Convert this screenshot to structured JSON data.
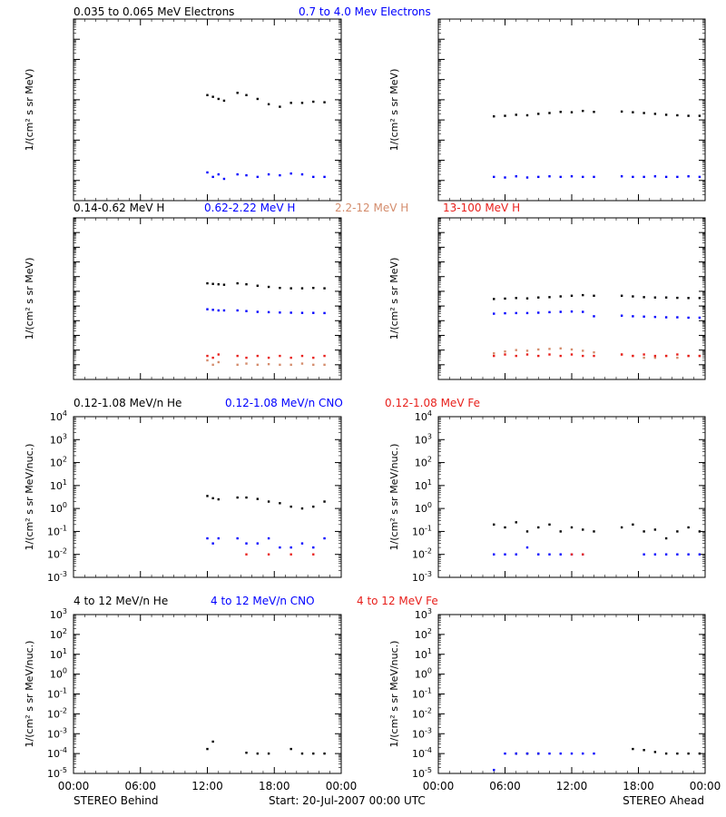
{
  "colors": {
    "black": "#000000",
    "blue": "#0000ff",
    "salmon": "#d48c6c",
    "red": "#e8201c"
  },
  "rows": [
    {
      "legend": [
        {
          "text": "0.035 to 0.065 MeV Electrons",
          "color": "#000000"
        },
        {
          "text": "0.7 to 4.0 Mev Electrons",
          "color": "#0000ff"
        }
      ],
      "ylabel": "1/(cm² s sr MeV)"
    },
    {
      "legend": [
        {
          "text": "0.14-0.62 MeV H",
          "color": "#000000"
        },
        {
          "text": "0.62-2.22 MeV H",
          "color": "#0000ff"
        },
        {
          "text": "2.2-12 MeV H",
          "color": "#d48c6c"
        },
        {
          "text": "13-100 MeV H",
          "color": "#e8201c"
        }
      ],
      "ylabel": "1/(cm² s sr MeV)"
    },
    {
      "legend": [
        {
          "text": "0.12-1.08 MeV/n He",
          "color": "#000000"
        },
        {
          "text": "0.12-1.08 MeV/n CNO",
          "color": "#0000ff"
        },
        {
          "text": "0.12-1.08 MeV Fe",
          "color": "#e8201c"
        }
      ],
      "ylabel": "1/(cm² s sr MeV/nuc.)"
    },
    {
      "legend": [
        {
          "text": "4 to 12 MeV/n He",
          "color": "#000000"
        },
        {
          "text": "4 to 12 MeV/n CNO",
          "color": "#0000ff"
        },
        {
          "text": "4 to 12 MeV Fe",
          "color": "#e8201c"
        }
      ],
      "ylabel": "1/(cm² s sr MeV/nuc.)"
    }
  ],
  "x_ticks": [
    "00:00",
    "06:00",
    "12:00",
    "18:00",
    "00:00"
  ],
  "footer": {
    "left": "STEREO Behind",
    "center": "Start: 20-Jul-2007 00:00 UTC",
    "right": "STEREO Ahead"
  },
  "chart_data": [
    {
      "type": "scatter",
      "panel": "row1-behind",
      "yscale": "log",
      "xlim": [
        0,
        24
      ],
      "ylim": [
        0.001,
        1000000
      ],
      "series": [
        {
          "color": "#000000",
          "x": [
            12,
            12.5,
            13,
            13.5,
            14.7,
            15.5,
            16.5,
            17.5,
            18.5,
            19.5,
            20.5,
            21.5,
            22.5
          ],
          "y": [
            170,
            140,
            110,
            90,
            220,
            170,
            110,
            60,
            45,
            70,
            70,
            80,
            75
          ]
        },
        {
          "color": "#0000ff",
          "x": [
            12,
            12.5,
            13,
            13.5,
            14.7,
            15.5,
            16.5,
            17.5,
            18.5,
            19.5,
            20.5,
            21.5,
            22.5
          ],
          "y": [
            0.025,
            0.015,
            0.02,
            0.012,
            0.02,
            0.018,
            0.015,
            0.02,
            0.018,
            0.022,
            0.02,
            0.015,
            0.015
          ]
        }
      ]
    },
    {
      "type": "scatter",
      "panel": "row1-ahead",
      "yscale": "log",
      "xlim": [
        0,
        24
      ],
      "ylim": [
        0.001,
        1000000
      ],
      "series": [
        {
          "color": "#000000",
          "x": [
            5,
            6,
            7,
            8,
            9,
            10,
            11,
            12,
            13,
            14,
            16.5,
            17.5,
            18.5,
            19.5,
            20.5,
            21.5,
            22.5,
            23.5
          ],
          "y": [
            15,
            16,
            18,
            17,
            20,
            22,
            25,
            24,
            28,
            25,
            26,
            24,
            22,
            20,
            18,
            17,
            16,
            16
          ]
        },
        {
          "color": "#0000ff",
          "x": [
            5,
            6,
            7,
            8,
            9,
            10,
            11,
            12,
            13,
            14,
            16.5,
            17.5,
            18.5,
            19.5,
            20.5,
            21.5,
            22.5,
            23.5
          ],
          "y": [
            0.015,
            0.014,
            0.016,
            0.014,
            0.015,
            0.016,
            0.015,
            0.016,
            0.015,
            0.015,
            0.016,
            0.015,
            0.015,
            0.016,
            0.015,
            0.015,
            0.016,
            0.015
          ]
        }
      ]
    },
    {
      "type": "scatter",
      "panel": "row2-behind",
      "yscale": "log",
      "xlim": [
        0,
        24
      ],
      "ylim": [
        1e-05,
        1000000
      ],
      "series": [
        {
          "color": "#000000",
          "x": [
            12,
            12.5,
            13,
            13.5,
            14.7,
            15.5,
            16.5,
            17.5,
            18.5,
            19.5,
            20.5,
            21.5,
            22.5
          ],
          "y": [
            35,
            32,
            30,
            28,
            35,
            30,
            24,
            20,
            17,
            16,
            16,
            17,
            16
          ]
        },
        {
          "color": "#0000ff",
          "x": [
            12,
            12.5,
            13,
            13.5,
            14.7,
            15.5,
            16.5,
            17.5,
            18.5,
            19.5,
            20.5,
            21.5,
            22.5
          ],
          "y": [
            0.6,
            0.55,
            0.5,
            0.5,
            0.5,
            0.45,
            0.4,
            0.38,
            0.36,
            0.35,
            0.34,
            0.34,
            0.33
          ]
        },
        {
          "color": "#d48c6c",
          "x": [
            12,
            12.5,
            13,
            14.7,
            15.5,
            16.5,
            17.5,
            18.5,
            19.5,
            20.5,
            21.5,
            22.5
          ],
          "y": [
            0.0002,
            0.0001,
            0.00015,
            0.0001,
            0.00012,
            0.0001,
            0.00011,
            0.0001,
            0.0001,
            0.00012,
            0.0001,
            0.0001
          ]
        },
        {
          "color": "#e8201c",
          "x": [
            12,
            12.5,
            13,
            14.7,
            15.5,
            16.5,
            17.5,
            18.5,
            19.5,
            20.5,
            21.5,
            22.5
          ],
          "y": [
            0.0004,
            0.0003,
            0.0005,
            0.0004,
            0.0003,
            0.0004,
            0.0003,
            0.0004,
            0.0003,
            0.0004,
            0.0003,
            0.0004
          ]
        }
      ]
    },
    {
      "type": "scatter",
      "panel": "row2-ahead",
      "yscale": "log",
      "xlim": [
        0,
        24
      ],
      "ylim": [
        1e-05,
        1000000
      ],
      "series": [
        {
          "color": "#000000",
          "x": [
            5,
            6,
            7,
            8,
            9,
            10,
            11,
            12,
            13,
            14,
            16.5,
            17.5,
            18.5,
            19.5,
            20.5,
            21.5,
            22.5,
            23.5
          ],
          "y": [
            3,
            3.2,
            3.5,
            3.3,
            3.8,
            4,
            4.5,
            5,
            5.5,
            5,
            5,
            4.5,
            4,
            3.8,
            3.8,
            3.6,
            3.5,
            3.5
          ]
        },
        {
          "color": "#0000ff",
          "x": [
            5,
            6,
            7,
            8,
            9,
            10,
            11,
            12,
            13,
            14,
            16.5,
            17.5,
            18.5,
            19.5,
            20.5,
            21.5,
            22.5,
            23.5
          ],
          "y": [
            0.3,
            0.32,
            0.33,
            0.33,
            0.35,
            0.38,
            0.4,
            0.42,
            0.4,
            0.2,
            0.22,
            0.2,
            0.19,
            0.18,
            0.17,
            0.17,
            0.16,
            0.16
          ]
        },
        {
          "color": "#d48c6c",
          "x": [
            5,
            6,
            7,
            8,
            9,
            10,
            11,
            12,
            13,
            14,
            16.5,
            17.5,
            18.5,
            19.5,
            20.5,
            21.5,
            22.5,
            23.5
          ],
          "y": [
            0.0006,
            0.0008,
            0.001,
            0.0009,
            0.0011,
            0.0012,
            0.0013,
            0.0011,
            0.0009,
            0.0007,
            0.0005,
            0.0004,
            0.0003,
            0.0003,
            0.0004,
            0.0003,
            0.0004,
            0.0004
          ]
        },
        {
          "color": "#e8201c",
          "x": [
            5,
            6,
            7,
            8,
            9,
            10,
            11,
            12,
            13,
            14,
            16.5,
            17.5,
            18.5,
            19.5,
            20.5,
            21.5,
            22.5,
            23.5
          ],
          "y": [
            0.0004,
            0.0005,
            0.0004,
            0.0005,
            0.0004,
            0.0005,
            0.0004,
            0.0005,
            0.0004,
            0.0004,
            0.0005,
            0.0004,
            0.0005,
            0.0004,
            0.0004,
            0.0005,
            0.0004,
            0.0004
          ]
        }
      ]
    },
    {
      "type": "scatter",
      "panel": "row3-behind",
      "yscale": "log",
      "xlim": [
        0,
        24
      ],
      "ylim": [
        0.001,
        10000
      ],
      "series": [
        {
          "color": "#000000",
          "x": [
            12,
            12.5,
            13,
            14.7,
            15.5,
            16.5,
            17.5,
            18.5,
            19.5,
            20.5,
            21.5,
            22.5
          ],
          "y": [
            3.5,
            2.8,
            2.5,
            3,
            3,
            2.6,
            2,
            1.7,
            1.2,
            1,
            1.2,
            2
          ]
        },
        {
          "color": "#0000ff",
          "x": [
            12,
            12.5,
            13,
            14.7,
            15.5,
            16.5,
            17.5,
            18.5,
            19.5,
            20.5,
            21.5,
            22.5
          ],
          "y": [
            0.05,
            0.03,
            0.05,
            0.05,
            0.03,
            0.03,
            0.05,
            0.02,
            0.02,
            0.03,
            0.02,
            0.05
          ]
        },
        {
          "color": "#e8201c",
          "x": [
            15.5,
            17.5,
            19.5,
            21.5
          ],
          "y": [
            0.01,
            0.01,
            0.01,
            0.01
          ]
        }
      ]
    },
    {
      "type": "scatter",
      "panel": "row3-ahead",
      "yscale": "log",
      "xlim": [
        0,
        24
      ],
      "ylim": [
        0.001,
        10000
      ],
      "series": [
        {
          "color": "#000000",
          "x": [
            5,
            6,
            7,
            8,
            9,
            10,
            11,
            12,
            13,
            14,
            16.5,
            17.5,
            18.5,
            19.5,
            20.5,
            21.5,
            22.5,
            23.5
          ],
          "y": [
            0.2,
            0.15,
            0.25,
            0.1,
            0.15,
            0.2,
            0.1,
            0.15,
            0.12,
            0.1,
            0.15,
            0.2,
            0.1,
            0.12,
            0.05,
            0.1,
            0.15,
            0.1
          ]
        },
        {
          "color": "#0000ff",
          "x": [
            5,
            6,
            7,
            8,
            9,
            10,
            11,
            12,
            13,
            18.5,
            19.5,
            20.5,
            21.5,
            22.5,
            23.5
          ],
          "y": [
            0.01,
            0.01,
            0.01,
            0.02,
            0.01,
            0.01,
            0.01,
            0.01,
            0.01,
            0.01,
            0.01,
            0.01,
            0.01,
            0.01,
            0.01
          ]
        },
        {
          "color": "#e8201c",
          "x": [
            12,
            13
          ],
          "y": [
            0.01,
            0.01
          ]
        }
      ]
    },
    {
      "type": "scatter",
      "panel": "row4-behind",
      "yscale": "log",
      "xlim": [
        0,
        24
      ],
      "ylim": [
        1e-05,
        1000
      ],
      "series": [
        {
          "color": "#000000",
          "x": [
            12,
            12.5,
            15.5,
            16.5,
            17.5,
            19.5,
            20.5,
            21.5,
            22.5
          ],
          "y": [
            0.00017,
            0.0004,
            0.00011,
            0.0001,
            0.0001,
            0.00017,
            0.0001,
            0.0001,
            0.0001
          ]
        }
      ]
    },
    {
      "type": "scatter",
      "panel": "row4-ahead",
      "yscale": "log",
      "xlim": [
        0,
        24
      ],
      "ylim": [
        1e-05,
        1000
      ],
      "series": [
        {
          "color": "#000000",
          "x": [
            7,
            8,
            9,
            17.5,
            18.5,
            19.5,
            20.5,
            21.5,
            22.5,
            23.5
          ],
          "y": [
            0.0001,
            0.0001,
            0.0001,
            0.00017,
            0.00015,
            0.00012,
            0.0001,
            0.0001,
            0.0001,
            0.0001
          ]
        },
        {
          "color": "#0000ff",
          "x": [
            5,
            6,
            7,
            8,
            9,
            10,
            11,
            12,
            13,
            14
          ],
          "y": [
            1.5e-05,
            0.0001,
            0.0001,
            0.0001,
            0.0001,
            0.0001,
            0.0001,
            0.0001,
            0.0001,
            0.0001
          ]
        }
      ]
    }
  ]
}
